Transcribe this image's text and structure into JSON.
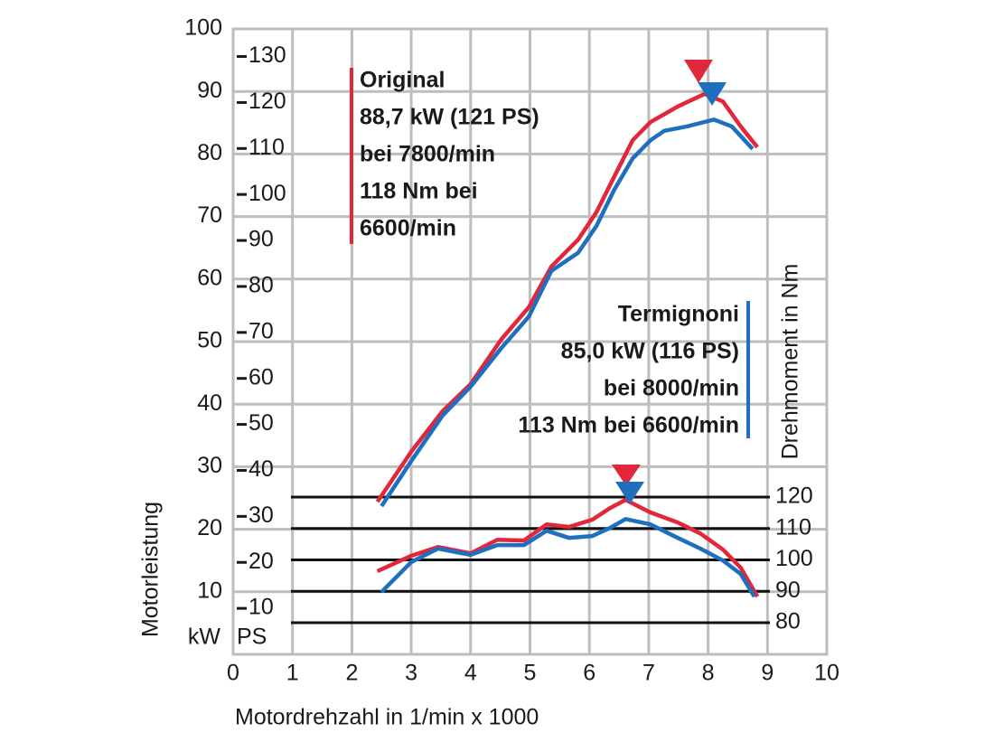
{
  "chart_data": {
    "type": "line",
    "x_label": "Motordrehzahl in 1/min x 1000",
    "y_label": "Motorleistung",
    "y_unit": "kW",
    "y2_unit": "PS",
    "y3_label": "Drehmoment in Nm",
    "xlim": [
      0,
      10
    ],
    "xticks": [
      0,
      1,
      2,
      3,
      4,
      5,
      6,
      7,
      8,
      9,
      10
    ],
    "ylim": [
      0,
      100
    ],
    "yticks": [
      10,
      20,
      30,
      40,
      50,
      60,
      70,
      80,
      90,
      100
    ],
    "y2lim": [
      0,
      136
    ],
    "y2ticks": [
      10,
      20,
      30,
      40,
      50,
      60,
      70,
      80,
      90,
      100,
      110,
      120,
      130
    ],
    "y3lim": [
      80,
      120
    ],
    "y3ticks": [
      80,
      90,
      100,
      110,
      120
    ],
    "grid": true,
    "series": [
      {
        "color": "#e0283a",
        "axis": "y",
        "x": [
          2.43,
          3.0,
          3.53,
          4.0,
          4.52,
          4.98,
          5.36,
          5.81,
          6.12,
          6.42,
          6.73,
          7.03,
          7.49,
          7.94,
          8.25,
          8.55,
          8.83
        ],
        "values": [
          24.4,
          32.4,
          38.9,
          43.2,
          50.4,
          55.5,
          62,
          66.3,
          70.7,
          76.4,
          82.2,
          85.1,
          87.6,
          89.6,
          88.4,
          84.4,
          81.1
        ]
      },
      {
        "color": "#1f6fbf",
        "axis": "y",
        "x": [
          2.5,
          3.0,
          3.53,
          4.0,
          4.52,
          4.98,
          5.36,
          5.81,
          6.12,
          6.42,
          6.73,
          7.03,
          7.26,
          7.64,
          8.1,
          8.4,
          8.75
        ],
        "values": [
          23.7,
          30.9,
          38.2,
          42.8,
          49,
          54,
          61.3,
          64.2,
          68.5,
          74.3,
          79.3,
          82.2,
          83.7,
          84.4,
          85.5,
          84.4,
          80.8
        ]
      },
      {
        "color": "#e0283a",
        "axis": "y3",
        "x": [
          2.43,
          3.0,
          3.45,
          4.0,
          4.45,
          4.9,
          5.28,
          5.66,
          6.05,
          6.35,
          6.61,
          7.03,
          7.49,
          7.87,
          8.25,
          8.55,
          8.83
        ],
        "values": [
          96.4,
          101.3,
          104.1,
          102.1,
          106.4,
          106.2,
          111.3,
          110.5,
          112.8,
          116.5,
          119.1,
          115.1,
          111.9,
          108.4,
          103.3,
          97.5,
          88.3
        ]
      },
      {
        "color": "#1f6fbf",
        "axis": "y3",
        "x": [
          2.5,
          3.0,
          3.45,
          4.0,
          4.45,
          4.9,
          5.28,
          5.66,
          6.05,
          6.35,
          6.61,
          7.03,
          7.49,
          7.87,
          8.25,
          8.55,
          8.78
        ],
        "values": [
          89.8,
          99.3,
          103.6,
          101.6,
          104.7,
          104.7,
          109.3,
          107,
          107.6,
          110.2,
          113,
          111.3,
          107,
          103.6,
          99.8,
          95.5,
          88.3
        ]
      }
    ],
    "annotations": [
      {
        "color": "#e0283a",
        "lines": [
          "Original",
          "88,7 kW (121 PS)",
          "bei 7800/min",
          "118 Nm bei",
          "6600/min"
        ]
      },
      {
        "color": "#1f6fbf",
        "lines": [
          "Termignoni",
          "85,0 kW (116 PS)",
          "bei 8000/min",
          "113 Nm bei 6600/min"
        ]
      }
    ]
  }
}
